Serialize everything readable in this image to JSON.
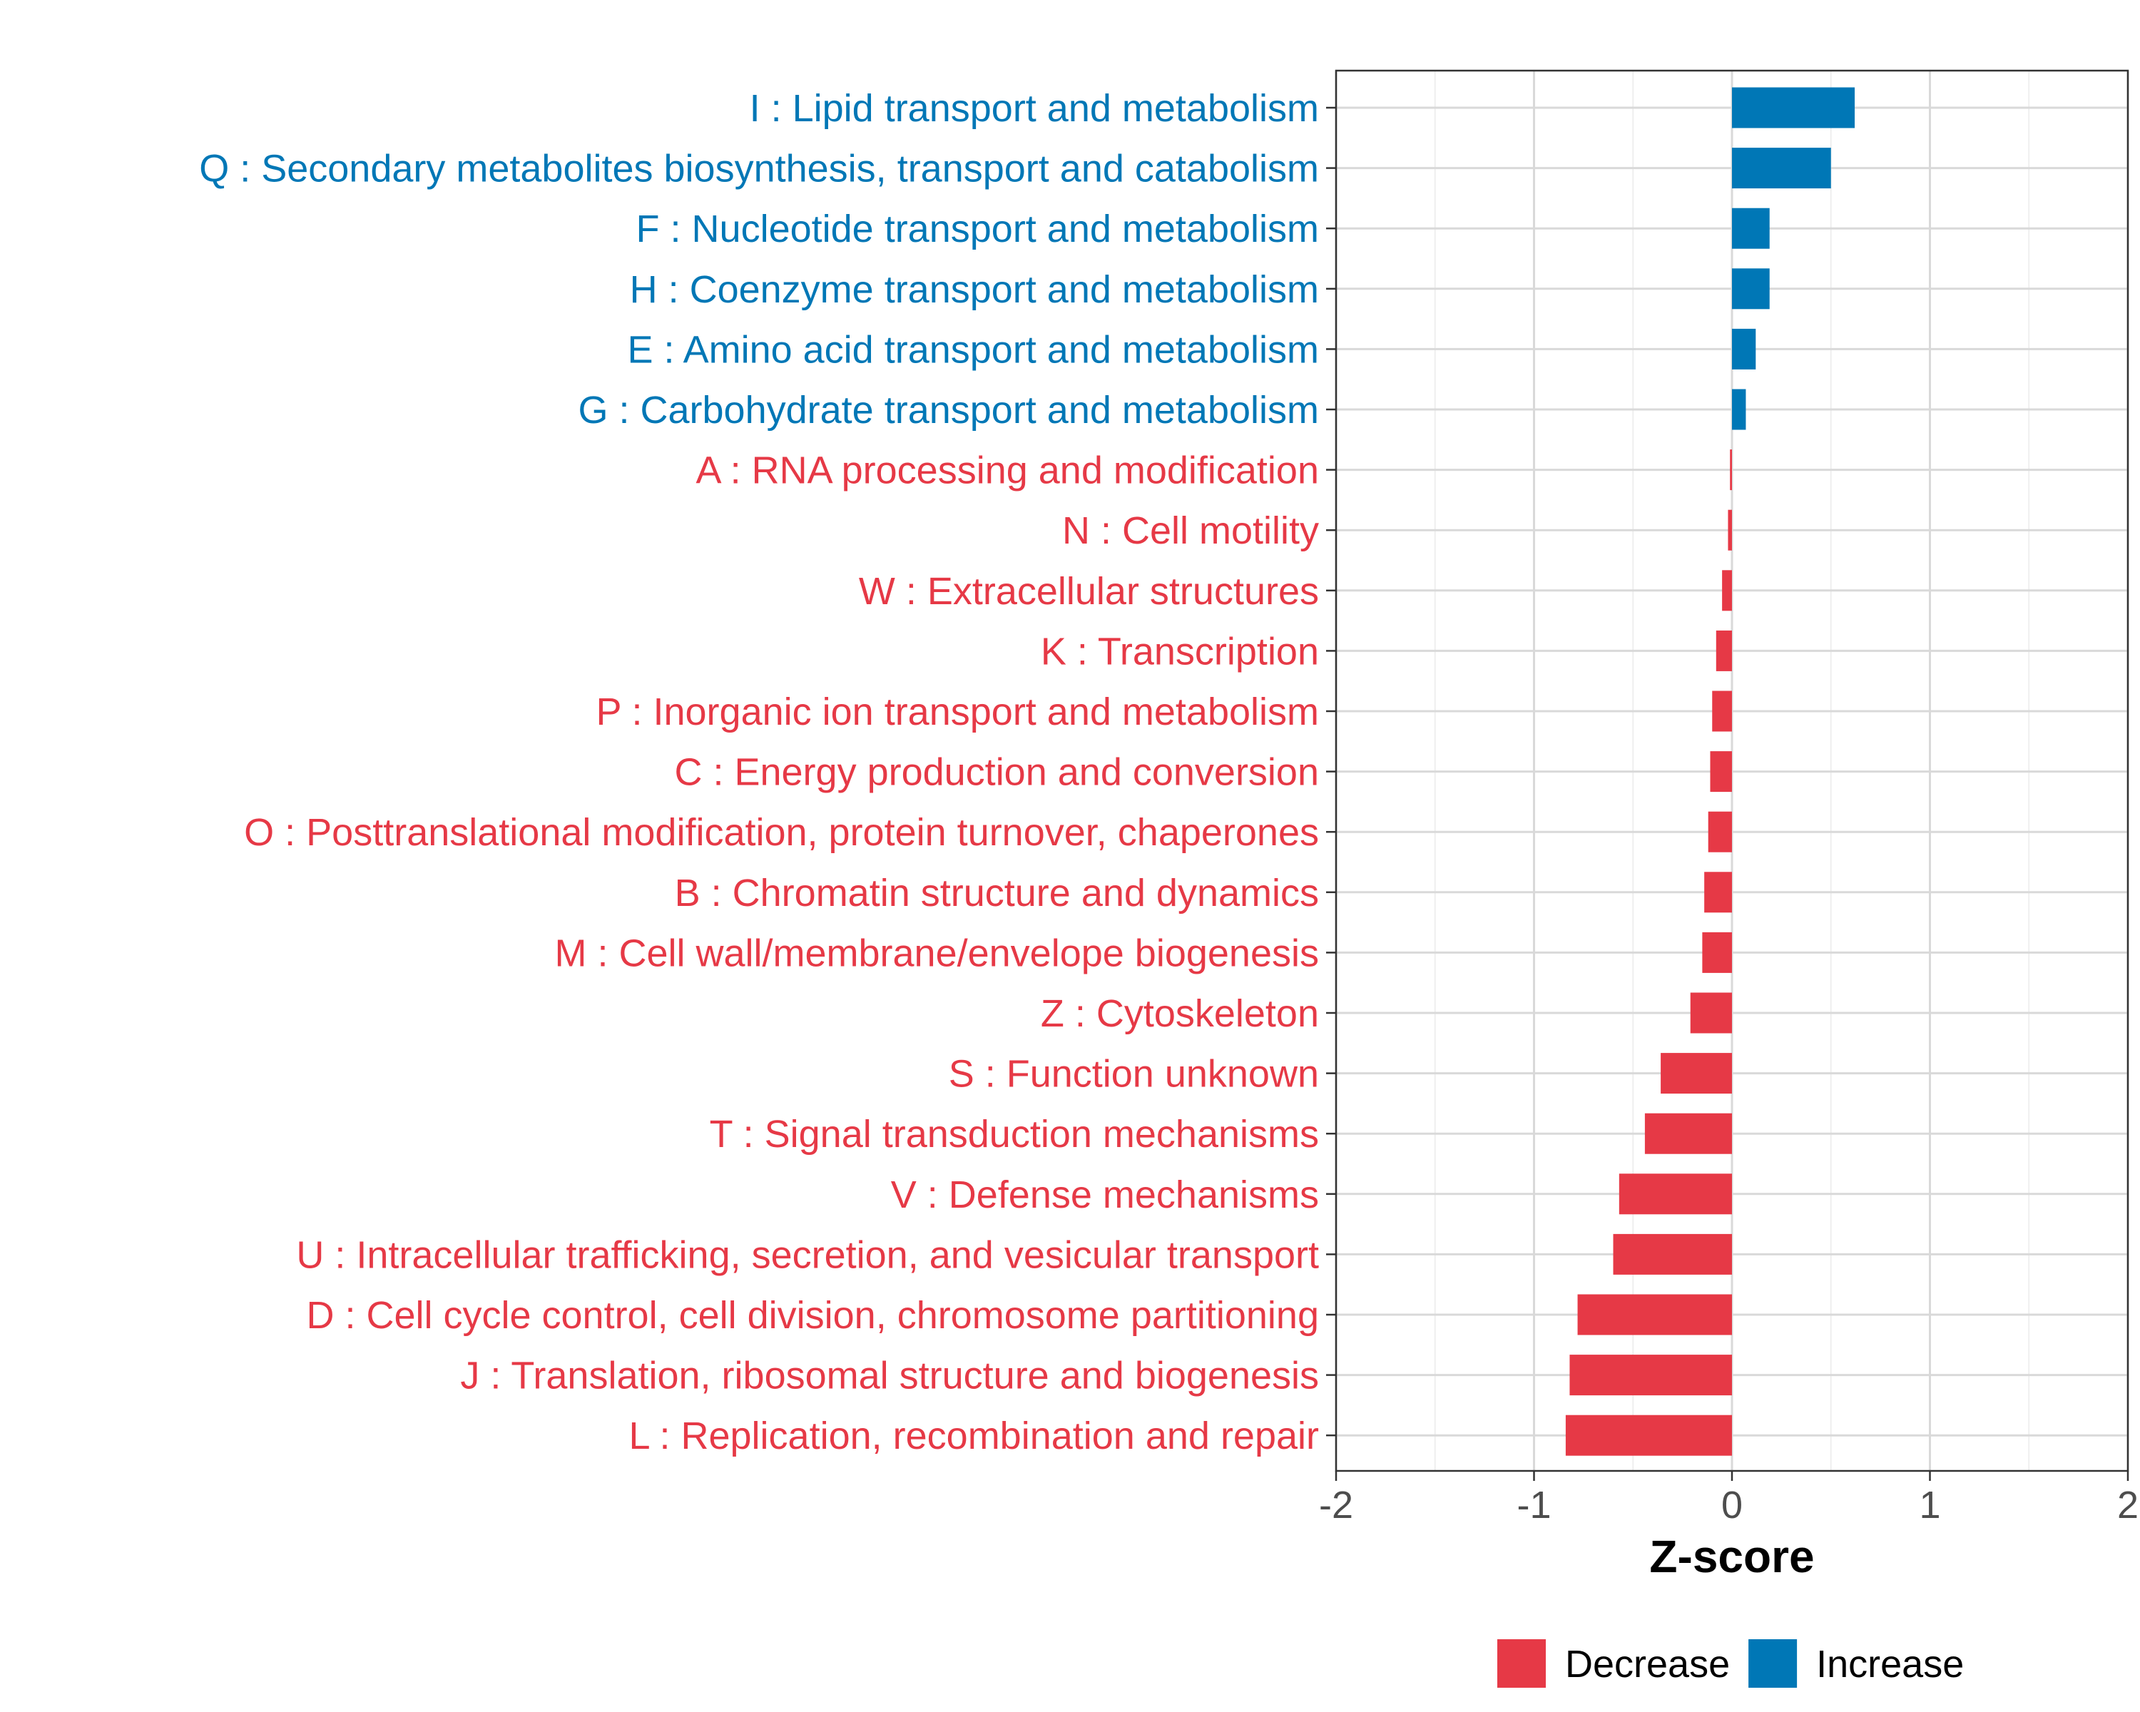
{
  "chart_data": {
    "type": "bar",
    "orientation": "horizontal",
    "title": "",
    "xlabel": "Z-score",
    "ylabel": "",
    "xlim": [
      -2,
      2
    ],
    "xticks": [
      -2,
      -1,
      0,
      1,
      2
    ],
    "xtick_labels": [
      "-2",
      "-1",
      "0",
      "1",
      "2"
    ],
    "grid": true,
    "legend_position": "bottom",
    "colors": {
      "Decrease": "#e63946",
      "Increase": "#0077b6"
    },
    "legend": [
      {
        "key": "Decrease",
        "label": "Decrease"
      },
      {
        "key": "Increase",
        "label": "Increase"
      }
    ],
    "categories": [
      "I : Lipid transport and metabolism",
      "Q : Secondary metabolites biosynthesis, transport and catabolism",
      "F : Nucleotide transport and metabolism",
      "H : Coenzyme transport and metabolism",
      "E : Amino acid transport and metabolism",
      "G : Carbohydrate transport and metabolism",
      "A : RNA processing and modification",
      "N : Cell motility",
      "W : Extracellular structures",
      "K : Transcription",
      "P : Inorganic ion transport and metabolism",
      "C : Energy production and conversion",
      "O : Posttranslational modification, protein turnover, chaperones",
      "B : Chromatin structure and dynamics",
      "M : Cell wall/membrane/envelope biogenesis",
      "Z : Cytoskeleton",
      "S : Function unknown",
      "T : Signal transduction mechanisms",
      "V : Defense mechanisms",
      "U : Intracellular trafficking, secretion, and vesicular transport",
      "D : Cell cycle control, cell division, chromosome partitioning",
      "J : Translation, ribosomal structure and biogenesis",
      "L : Replication, recombination and repair"
    ],
    "values": [
      0.62,
      0.5,
      0.19,
      0.19,
      0.12,
      0.07,
      -0.01,
      -0.02,
      -0.05,
      -0.08,
      -0.1,
      -0.11,
      -0.12,
      -0.14,
      -0.15,
      -0.21,
      -0.36,
      -0.44,
      -0.57,
      -0.6,
      -0.78,
      -0.82,
      -0.84
    ],
    "groups": [
      "Increase",
      "Increase",
      "Increase",
      "Increase",
      "Increase",
      "Increase",
      "Decrease",
      "Decrease",
      "Decrease",
      "Decrease",
      "Decrease",
      "Decrease",
      "Decrease",
      "Decrease",
      "Decrease",
      "Decrease",
      "Decrease",
      "Decrease",
      "Decrease",
      "Decrease",
      "Decrease",
      "Decrease",
      "Decrease"
    ]
  }
}
